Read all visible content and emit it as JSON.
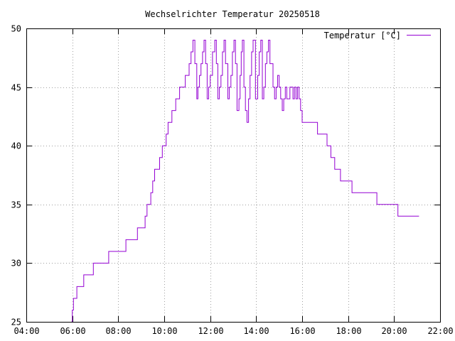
{
  "chart_data": {
    "type": "line",
    "title": "Wechselrichter Temperatur 20250518",
    "xlabel": "",
    "ylabel": "",
    "xlim": [
      "04:00",
      "22:00"
    ],
    "ylim": [
      25,
      50
    ],
    "x_ticks": [
      "04:00",
      "06:00",
      "08:00",
      "10:00",
      "12:00",
      "14:00",
      "16:00",
      "18:00",
      "20:00",
      "22:00"
    ],
    "y_ticks": [
      "25",
      "30",
      "35",
      "40",
      "45",
      "50"
    ],
    "grid": true,
    "legend_position": "top-right",
    "series": [
      {
        "name": "Temperatur [°C]",
        "color": "#9400d3",
        "step": true,
        "x": [
          "05:58",
          "06:00",
          "06:03",
          "06:05",
          "06:12",
          "06:30",
          "06:55",
          "07:35",
          "08:20",
          "08:50",
          "09:05",
          "09:10",
          "09:15",
          "09:20",
          "09:25",
          "09:30",
          "09:35",
          "09:40",
          "09:48",
          "09:55",
          "10:00",
          "10:05",
          "10:10",
          "10:15",
          "10:20",
          "10:30",
          "10:40",
          "10:55",
          "11:05",
          "11:10",
          "11:15",
          "11:20",
          "11:25",
          "11:28",
          "11:32",
          "11:36",
          "11:40",
          "11:44",
          "11:48",
          "11:52",
          "11:56",
          "12:00",
          "12:06",
          "12:12",
          "12:16",
          "12:20",
          "12:24",
          "12:28",
          "12:32",
          "12:36",
          "12:40",
          "12:46",
          "12:50",
          "12:54",
          "12:58",
          "13:02",
          "13:06",
          "13:10",
          "13:15",
          "13:18",
          "13:21",
          "13:24",
          "13:28",
          "13:32",
          "13:36",
          "13:40",
          "13:44",
          "13:48",
          "13:52",
          "13:58",
          "14:04",
          "14:08",
          "14:12",
          "14:16",
          "14:20",
          "14:24",
          "14:28",
          "14:32",
          "14:36",
          "14:44",
          "14:48",
          "14:52",
          "14:56",
          "15:00",
          "15:04",
          "15:08",
          "15:12",
          "15:16",
          "15:20",
          "15:24",
          "15:28",
          "15:32",
          "15:36",
          "15:40",
          "15:44",
          "15:48",
          "15:52",
          "15:56",
          "16:00",
          "16:05",
          "16:10",
          "16:40",
          "17:05",
          "17:15",
          "17:25",
          "17:40",
          "17:55",
          "18:10",
          "18:35",
          "19:15",
          "20:10",
          "21:05"
        ],
        "values": [
          25,
          26,
          27,
          27,
          28,
          29,
          30,
          31,
          32,
          33,
          33,
          34,
          35,
          35,
          36,
          37,
          38,
          38,
          39,
          40,
          40,
          41,
          42,
          42,
          43,
          44,
          45,
          46,
          47,
          48,
          49,
          47,
          44,
          45,
          46,
          47,
          48,
          49,
          47,
          44,
          45,
          46,
          48,
          49,
          47,
          44,
          45,
          46,
          48,
          49,
          47,
          44,
          45,
          46,
          48,
          49,
          47,
          43,
          44,
          46,
          48,
          49,
          45,
          43,
          42,
          44,
          46,
          48,
          49,
          44,
          46,
          48,
          49,
          44,
          45,
          47,
          48,
          49,
          47,
          45,
          44,
          45,
          46,
          45,
          44,
          43,
          44,
          45,
          44,
          44,
          45,
          45,
          44,
          45,
          44,
          45,
          44,
          43,
          42,
          42,
          42,
          41,
          40,
          39,
          38,
          37,
          37,
          36,
          36,
          35,
          34,
          34
        ]
      }
    ]
  }
}
